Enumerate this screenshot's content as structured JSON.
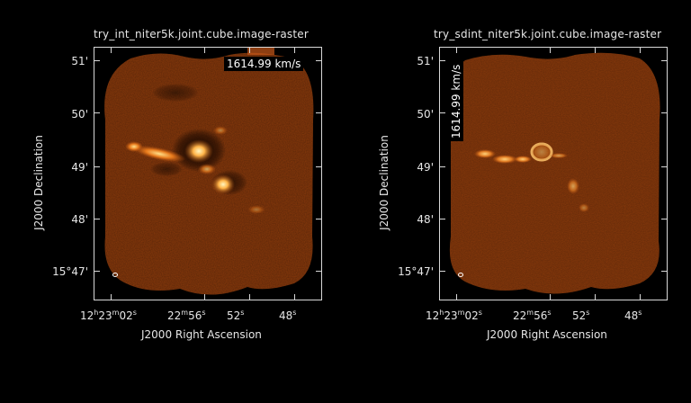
{
  "panels": [
    {
      "title": "try_int_niter5k.joint.cube.image-raster",
      "velocity_label": "1614.99 km/s",
      "y_title": "J2000 Declination",
      "x_title": "J2000 Right Ascension",
      "dec_ticks": [
        "51'",
        "50'",
        "49'",
        "48'",
        "15°47'"
      ],
      "ra_ticks": [
        "12h23m02s",
        "22m56s",
        "52s",
        "48s"
      ]
    },
    {
      "title": "try_sdint_niter5k.joint.cube.image-raster",
      "velocity_label": "1614.99 km/s",
      "y_title": "J2000 Declination",
      "x_title": "J2000 Right Ascension",
      "dec_ticks": [
        "51'",
        "50'",
        "49'",
        "48'",
        "15°47'"
      ],
      "ra_ticks": [
        "12h23m02s",
        "22m56s",
        "52s",
        "48s"
      ]
    }
  ],
  "colors": {
    "background": "#000000",
    "image_base": "#8a3a0c",
    "emission_bright": "#ffe08a",
    "axes": "#d8d8d8"
  }
}
